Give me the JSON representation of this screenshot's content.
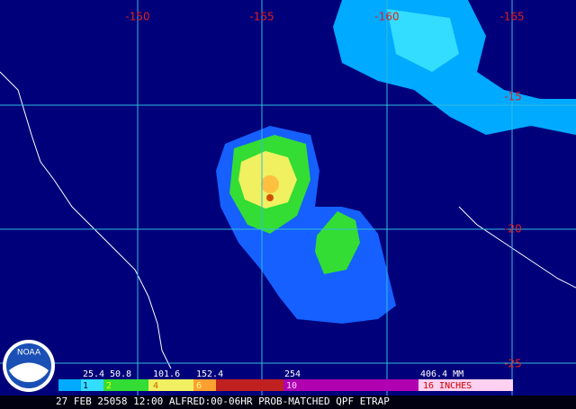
{
  "map": {
    "lon_labels": [
      "-150",
      "-155",
      "-160",
      "-165"
    ],
    "lat_labels": [
      "-15",
      "-20",
      "-25"
    ],
    "legend": {
      "mm_labels": [
        "25.4",
        "50.8",
        "101.6",
        "152.4",
        "254",
        "406.4 MM"
      ],
      "inch_labels": [
        "1",
        "2",
        "4",
        "6",
        "10",
        "16 INCHES"
      ]
    },
    "caption": "27 FEB 25058 12:00 ALFRED:00-06HR PROB-MATCHED QPF ETRAP",
    "logo": "NOAA"
  }
}
